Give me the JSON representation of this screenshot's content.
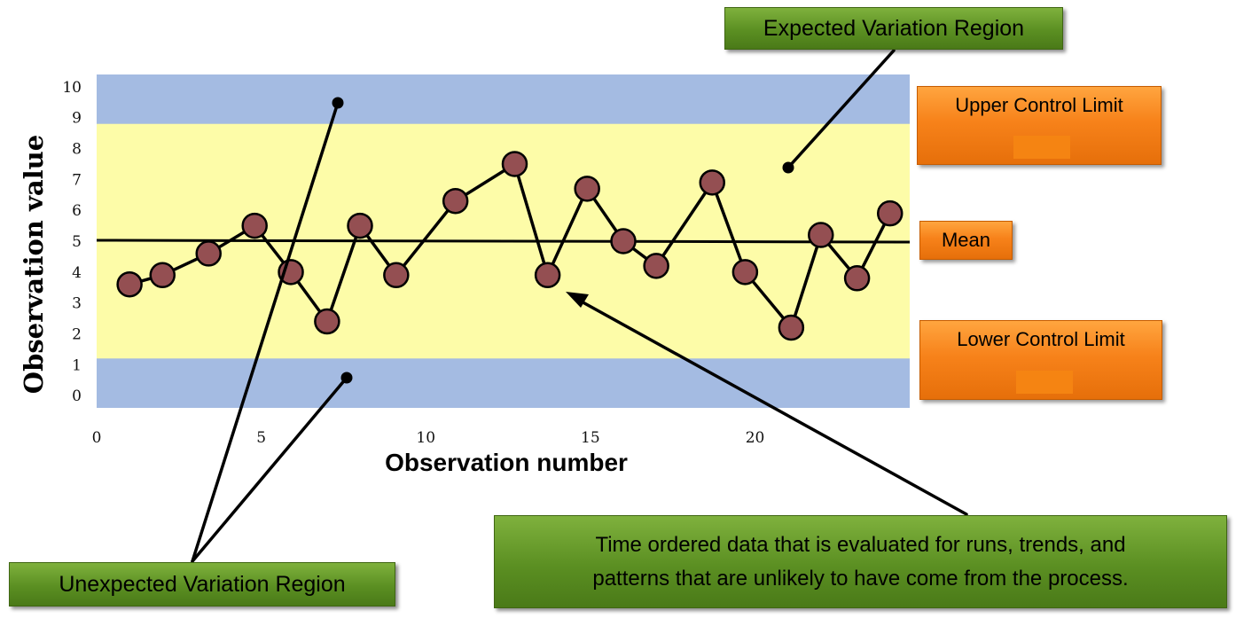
{
  "chart_data": {
    "type": "line",
    "xlabel": "Observation number",
    "ylabel": "Observation value",
    "x_ticks": [
      0,
      5,
      10,
      15,
      20
    ],
    "y_ticks": [
      0,
      1,
      2,
      3,
      4,
      5,
      6,
      7,
      8,
      9,
      10
    ],
    "xlim": [
      0,
      24.7
    ],
    "ylim": [
      -0.4,
      10.4
    ],
    "grid": false,
    "mean": 5.0,
    "upper_control_limit": 8.8,
    "lower_control_limit": 1.2,
    "x": [
      1,
      2,
      3.4,
      4.8,
      5.9,
      7,
      8,
      9.1,
      10.9,
      12.7,
      13.7,
      14.9,
      16,
      17,
      18.7,
      19.7,
      21.1,
      22,
      23.1,
      24.1
    ],
    "values": [
      3.6,
      3.9,
      4.6,
      5.5,
      4.0,
      2.4,
      5.5,
      3.9,
      6.3,
      7.5,
      3.9,
      6.7,
      5.0,
      4.2,
      6.9,
      4.0,
      2.2,
      5.2,
      3.8,
      5.9
    ],
    "colors": {
      "outer_band": "#a4bbe2",
      "inner_band": "#fdfca8",
      "marker_fill": "#944f52",
      "line": "#000000"
    }
  },
  "callouts": {
    "expected_region": "Expected Variation Region",
    "ucl": "Upper Control Limit",
    "mean": "Mean",
    "lcl": "Lower Control Limit",
    "unexpected_region": "Unexpected Variation Region",
    "description_line1": "Time ordered data that is evaluated for runs, trends, and",
    "description_line2": "patterns that are unlikely to have come from the process."
  }
}
